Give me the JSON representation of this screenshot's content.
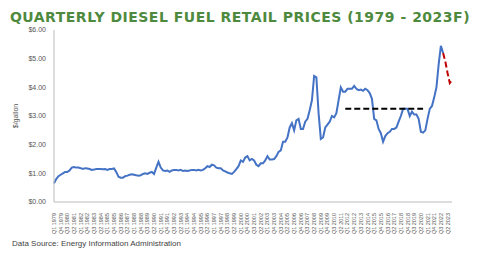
{
  "chart_data": {
    "type": "line",
    "title": "QUARTERLY DIESEL FUEL RETAIL PRICES (1979 - 2023F)",
    "y_label": "$/gallon",
    "source": "Data Source: Energy Information Administration",
    "categories": [
      "Q1 1979",
      null,
      null,
      "Q4 1979",
      null,
      null,
      "Q3 1980",
      null,
      null,
      "Q2 1981",
      null,
      null,
      "Q1 1982",
      null,
      null,
      "Q4 1982",
      null,
      null,
      "Q3 1983",
      null,
      null,
      "Q2 1984",
      null,
      null,
      "Q1 1985",
      null,
      null,
      "Q4 1985",
      null,
      null,
      "Q3 1986",
      null,
      null,
      "Q2 1987",
      null,
      null,
      "Q1 1988",
      null,
      null,
      "Q4 1988",
      null,
      null,
      "Q3 1989",
      null,
      null,
      "Q2 1990",
      null,
      null,
      "Q1 1991",
      null,
      null,
      "Q4 1991",
      null,
      null,
      "Q3 1992",
      null,
      null,
      "Q2 1993",
      null,
      null,
      "Q1 1994",
      null,
      null,
      "Q4 1994",
      null,
      null,
      "Q3 1995",
      null,
      null,
      "Q2 1996",
      null,
      null,
      "Q1 1997",
      null,
      null,
      "Q4 1997",
      null,
      null,
      "Q3 1998",
      null,
      null,
      "Q2 1999",
      null,
      null,
      "Q1 2000",
      null,
      null,
      "Q4 2000",
      null,
      null,
      "Q3 2001",
      null,
      null,
      "Q2 2002",
      null,
      null,
      "Q1 2003",
      null,
      null,
      "Q4 2003",
      null,
      null,
      "Q3 2004",
      null,
      null,
      "Q2 2005",
      null,
      null,
      "Q1 2006",
      null,
      null,
      "Q4 2006",
      null,
      null,
      "Q3 2007",
      null,
      null,
      "Q2 2008",
      null,
      null,
      "Q1 2009",
      null,
      null,
      "Q4 2009",
      null,
      null,
      "Q3 2010",
      null,
      null,
      "Q2 2011",
      null,
      null,
      "Q1 2012",
      null,
      null,
      "Q4 2012",
      null,
      null,
      "Q3 2013",
      null,
      null,
      "Q2 2014",
      null,
      null,
      "Q1 2015",
      null,
      null,
      "Q4 2015",
      null,
      null,
      "Q3 2016",
      null,
      null,
      "Q2 2017",
      null,
      null,
      "Q1 2018",
      null,
      null,
      "Q4 2018",
      null,
      null,
      "Q3 2019",
      null,
      null,
      "Q2 2020",
      null,
      null,
      "Q1 2021",
      null,
      null,
      "Q4 2021",
      null,
      null,
      "Q3 2022",
      null,
      null,
      "Q2 2023",
      null,
      null
    ],
    "series": [
      {
        "color": "#4472c4",
        "line_style": "solid",
        "values": [
          0.65,
          0.8,
          0.9,
          0.95,
          1.0,
          1.05,
          1.05,
          1.1,
          1.2,
          1.22,
          1.2,
          1.2,
          1.18,
          1.15,
          1.18,
          1.17,
          1.15,
          1.12,
          1.13,
          1.15,
          1.15,
          1.15,
          1.14,
          1.15,
          1.12,
          1.15,
          1.15,
          1.17,
          1.05,
          0.88,
          0.85,
          0.85,
          0.9,
          0.92,
          0.95,
          0.97,
          0.95,
          0.93,
          0.92,
          0.93,
          0.98,
          1.0,
          0.98,
          1.02,
          1.05,
          0.98,
          1.2,
          1.4,
          1.2,
          1.1,
          1.08,
          1.1,
          1.05,
          1.1,
          1.12,
          1.12,
          1.1,
          1.12,
          1.08,
          1.1,
          1.08,
          1.1,
          1.12,
          1.12,
          1.1,
          1.12,
          1.1,
          1.12,
          1.18,
          1.25,
          1.22,
          1.3,
          1.28,
          1.2,
          1.18,
          1.18,
          1.1,
          1.07,
          1.03,
          1.0,
          0.98,
          1.05,
          1.15,
          1.25,
          1.45,
          1.4,
          1.55,
          1.6,
          1.45,
          1.5,
          1.45,
          1.3,
          1.25,
          1.35,
          1.35,
          1.45,
          1.6,
          1.48,
          1.48,
          1.5,
          1.6,
          1.75,
          1.8,
          2.1,
          2.1,
          2.25,
          2.6,
          2.75,
          2.5,
          2.85,
          2.9,
          2.55,
          2.55,
          2.8,
          2.9,
          3.2,
          3.55,
          4.4,
          4.35,
          3.1,
          2.2,
          2.25,
          2.6,
          2.7,
          2.8,
          3.0,
          2.95,
          3.1,
          3.55,
          4.0,
          3.85,
          3.85,
          3.95,
          3.95,
          3.95,
          4.05,
          3.95,
          3.9,
          3.92,
          3.88,
          3.95,
          3.9,
          3.8,
          3.6,
          2.9,
          2.85,
          2.55,
          2.4,
          2.1,
          2.3,
          2.4,
          2.45,
          2.55,
          2.55,
          2.6,
          2.8,
          3.0,
          3.25,
          3.25,
          3.25,
          3.0,
          3.15,
          3.05,
          3.05,
          2.9,
          2.45,
          2.42,
          2.5,
          2.9,
          3.25,
          3.35,
          3.65,
          4.0,
          4.8,
          5.45,
          5.2,
          null,
          null,
          null,
          null
        ]
      },
      {
        "color": "#c00000",
        "line_style": "dashed",
        "values": [
          null,
          null,
          null,
          null,
          null,
          null,
          null,
          null,
          null,
          null,
          null,
          null,
          null,
          null,
          null,
          null,
          null,
          null,
          null,
          null,
          null,
          null,
          null,
          null,
          null,
          null,
          null,
          null,
          null,
          null,
          null,
          null,
          null,
          null,
          null,
          null,
          null,
          null,
          null,
          null,
          null,
          null,
          null,
          null,
          null,
          null,
          null,
          null,
          null,
          null,
          null,
          null,
          null,
          null,
          null,
          null,
          null,
          null,
          null,
          null,
          null,
          null,
          null,
          null,
          null,
          null,
          null,
          null,
          null,
          null,
          null,
          null,
          null,
          null,
          null,
          null,
          null,
          null,
          null,
          null,
          null,
          null,
          null,
          null,
          null,
          null,
          null,
          null,
          null,
          null,
          null,
          null,
          null,
          null,
          null,
          null,
          null,
          null,
          null,
          null,
          null,
          null,
          null,
          null,
          null,
          null,
          null,
          null,
          null,
          null,
          null,
          null,
          null,
          null,
          null,
          null,
          null,
          null,
          null,
          null,
          null,
          null,
          null,
          null,
          null,
          null,
          null,
          null,
          null,
          null,
          null,
          null,
          null,
          null,
          null,
          null,
          null,
          null,
          null,
          null,
          null,
          null,
          null,
          null,
          null,
          null,
          null,
          null,
          null,
          null,
          null,
          null,
          null,
          null,
          null,
          null,
          null,
          null,
          null,
          null,
          null,
          null,
          null,
          null,
          null,
          null,
          null,
          null,
          null,
          null,
          null,
          null,
          null,
          null,
          null,
          5.2,
          4.9,
          4.5,
          4.15,
          4.25
        ]
      },
      {
        "color": "#000000",
        "line_style": "dashed",
        "values": [
          null,
          null,
          null,
          null,
          null,
          null,
          null,
          null,
          null,
          null,
          null,
          null,
          null,
          null,
          null,
          null,
          null,
          null,
          null,
          null,
          null,
          null,
          null,
          null,
          null,
          null,
          null,
          null,
          null,
          null,
          null,
          null,
          null,
          null,
          null,
          null,
          null,
          null,
          null,
          null,
          null,
          null,
          null,
          null,
          null,
          null,
          null,
          null,
          null,
          null,
          null,
          null,
          null,
          null,
          null,
          null,
          null,
          null,
          null,
          null,
          null,
          null,
          null,
          null,
          null,
          null,
          null,
          null,
          null,
          null,
          null,
          null,
          null,
          null,
          null,
          null,
          null,
          null,
          null,
          null,
          null,
          null,
          null,
          null,
          null,
          null,
          null,
          null,
          null,
          null,
          null,
          null,
          null,
          null,
          null,
          null,
          null,
          null,
          null,
          null,
          null,
          null,
          null,
          null,
          null,
          null,
          null,
          null,
          null,
          null,
          null,
          null,
          null,
          null,
          null,
          null,
          null,
          null,
          null,
          null,
          null,
          null,
          null,
          null,
          null,
          null,
          null,
          null,
          null,
          null,
          null,
          3.25,
          3.25,
          3.25,
          3.25,
          3.25,
          3.25,
          3.25,
          3.25,
          3.25,
          3.25,
          3.25,
          3.25,
          3.25,
          3.25,
          3.25,
          3.25,
          3.25,
          3.25,
          3.25,
          3.25,
          3.25,
          3.25,
          3.25,
          3.25,
          3.25,
          3.25,
          3.25,
          3.25,
          3.25,
          3.25,
          3.25,
          3.25,
          3.25,
          3.25,
          3.25,
          3.25,
          null,
          null,
          null,
          null,
          null,
          null,
          null,
          null,
          null,
          null,
          null,
          null,
          null
        ]
      }
    ],
    "ylim": [
      0,
      6
    ],
    "yticks": [
      {
        "value": 0,
        "label": "$0.00"
      },
      {
        "value": 1,
        "label": "$1.00"
      },
      {
        "value": 2,
        "label": "$2.00"
      },
      {
        "value": 3,
        "label": "$3.00"
      },
      {
        "value": 4,
        "label": "$4.00"
      },
      {
        "value": 5,
        "label": "$5.00"
      },
      {
        "value": 6,
        "label": "$6.00"
      }
    ],
    "grid": false
  }
}
